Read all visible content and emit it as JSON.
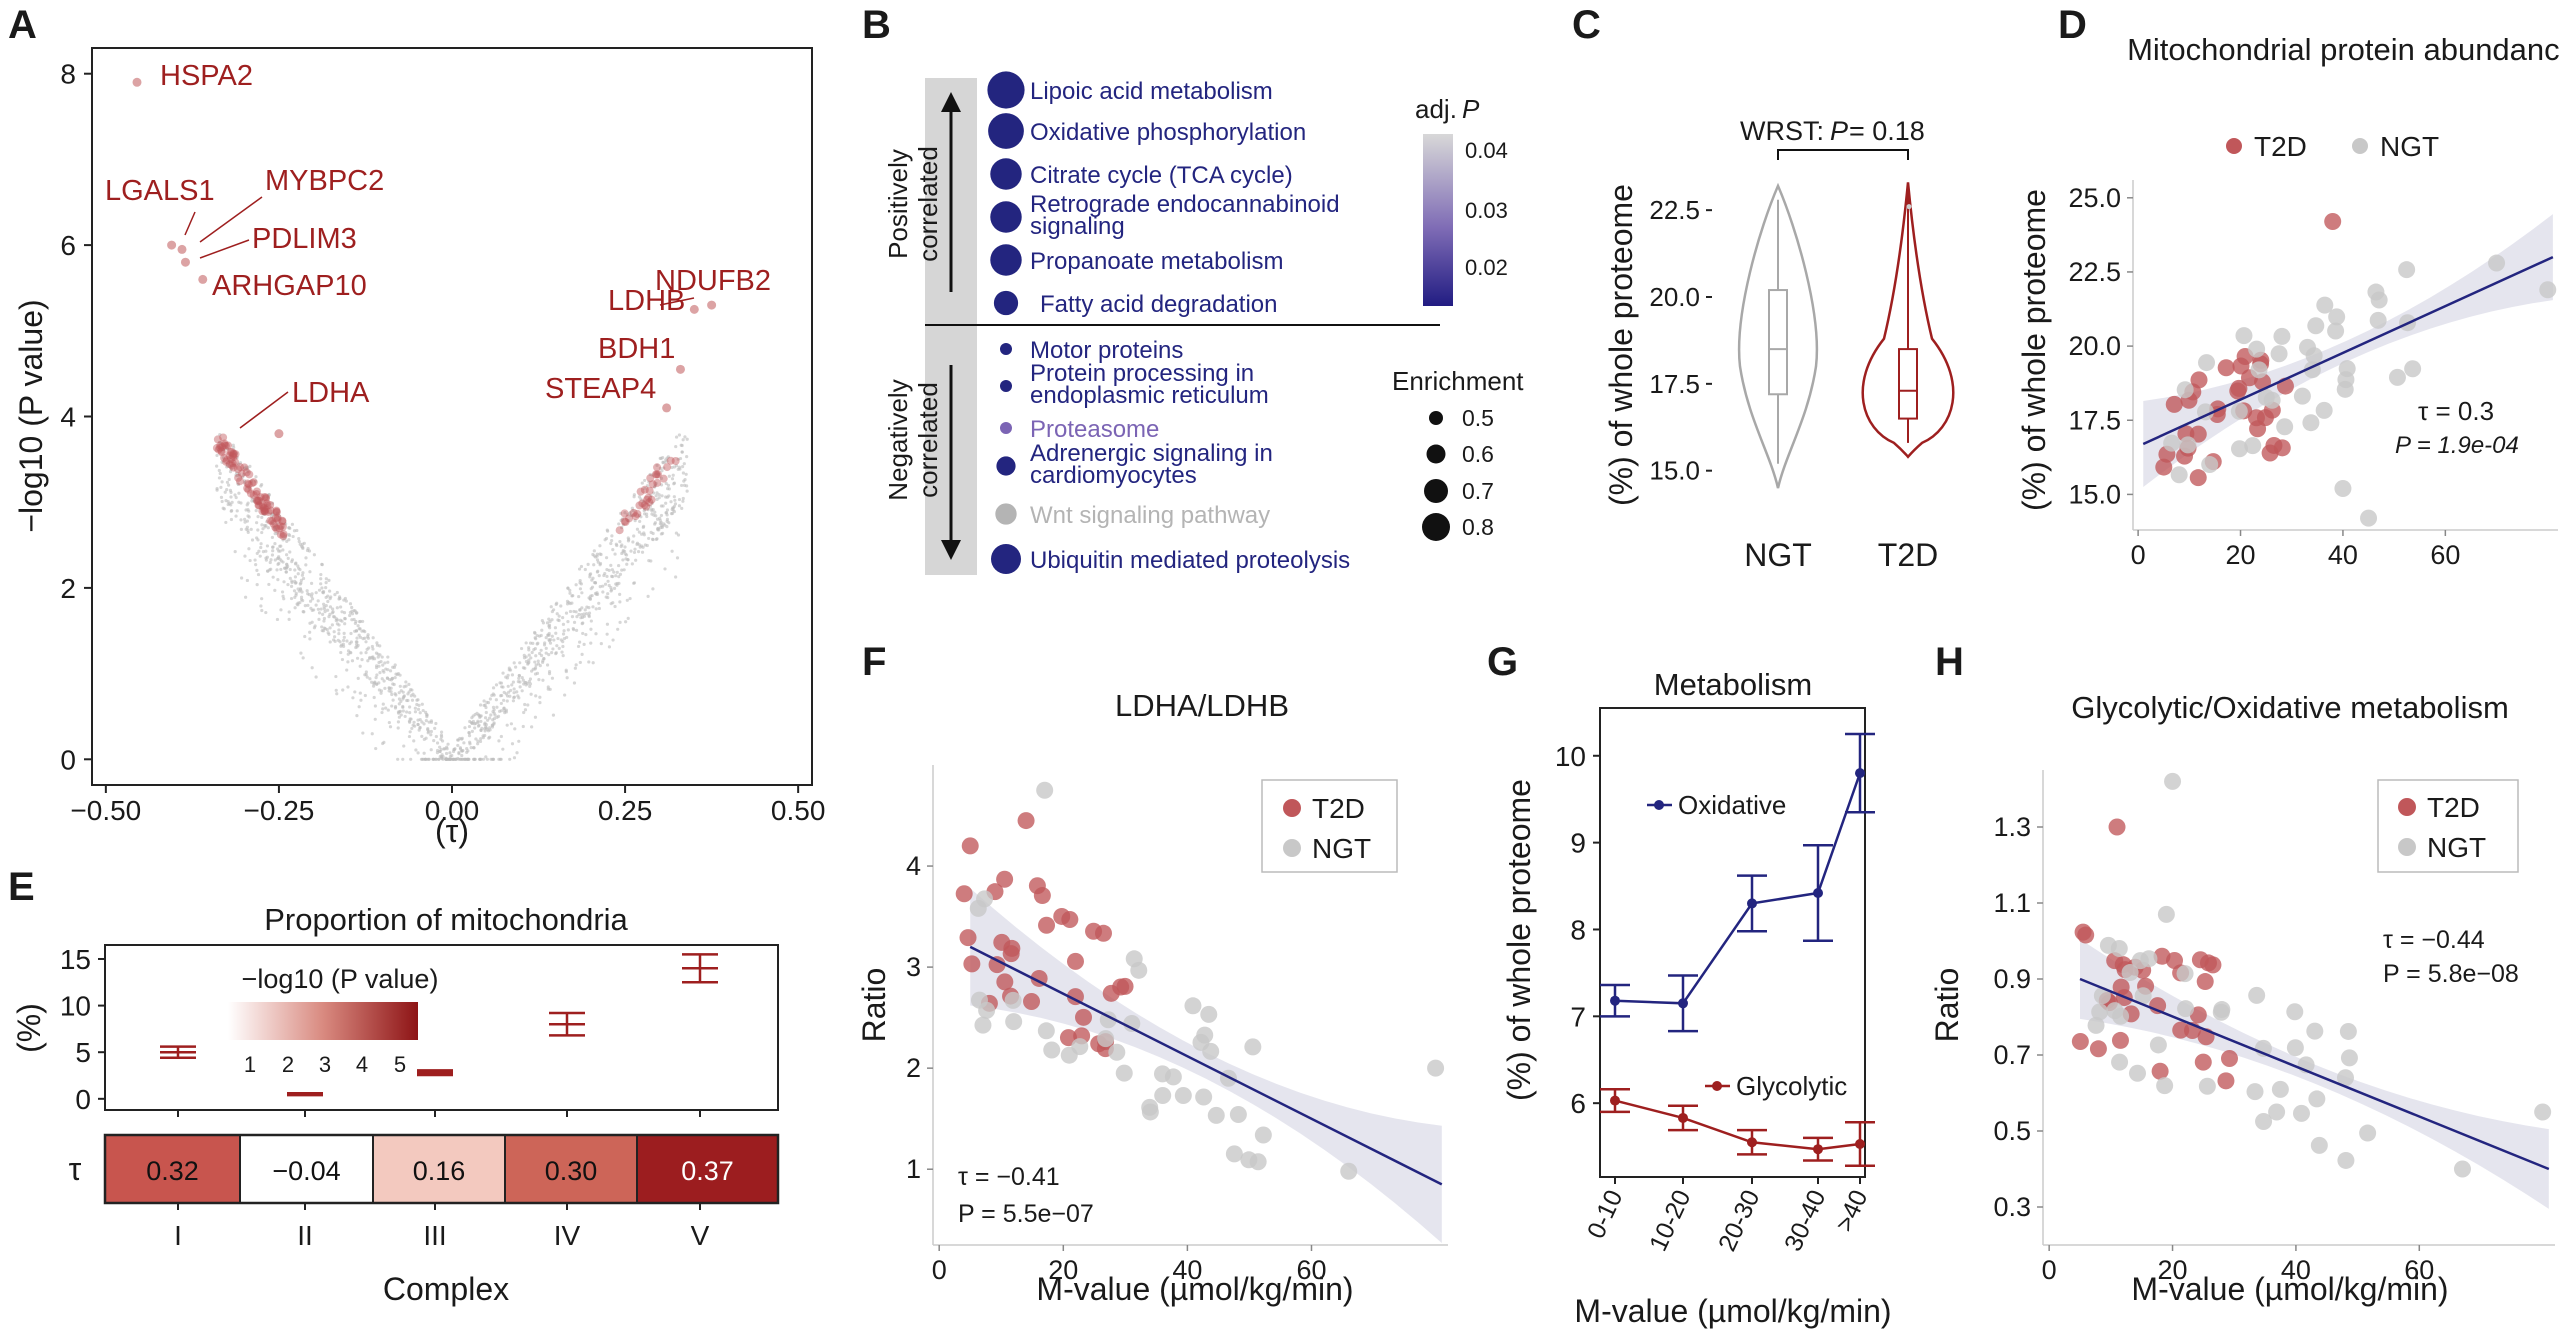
{
  "colors": {
    "red": "#9e1f1f",
    "pinkRed": "#c0575a",
    "navy": "#23257f",
    "grey": "#c8c8c8",
    "darkGrey": "#8a8a8a",
    "purple": "#7b64b4",
    "lightGrey": "#b4b4b4"
  },
  "chart_data": [
    {
      "panel": "A",
      "type": "scatter",
      "title": "",
      "xlabel": "(τ)",
      "ylabel": "−log10 (P value)",
      "xlim": [
        -0.52,
        0.52
      ],
      "ylim": [
        -0.3,
        8.3
      ],
      "xticks": [
        -0.5,
        -0.25,
        0.0,
        0.25,
        0.5
      ],
      "xtick_labels": [
        "−0.50",
        "−0.25",
        "0.00",
        "0.25",
        "0.50"
      ],
      "yticks": [
        0,
        2,
        4,
        6,
        8
      ],
      "labeled_points": [
        {
          "label": "HSPA2",
          "x": -0.455,
          "y": 7.9
        },
        {
          "label": "LGALS1",
          "x": -0.405,
          "y": 6.0
        },
        {
          "label": "MYBPC2",
          "x": -0.39,
          "y": 5.95
        },
        {
          "label": "PDLIM3",
          "x": -0.385,
          "y": 5.8
        },
        {
          "label": "ARHGAP10",
          "x": -0.36,
          "y": 5.6
        },
        {
          "label": "LDHA",
          "x": -0.25,
          "y": 3.8
        },
        {
          "label": "LDHB",
          "x": 0.35,
          "y": 5.25
        },
        {
          "label": "NDUFB2",
          "x": 0.375,
          "y": 5.3
        },
        {
          "label": "BDH1",
          "x": 0.33,
          "y": 4.55
        },
        {
          "label": "STEAP4",
          "x": 0.31,
          "y": 4.1
        }
      ]
    },
    {
      "panel": "B",
      "type": "dot",
      "axis_top": "Positively correlated",
      "axis_bottom": "Negatively correlated",
      "legend_color_title": "adj.P",
      "legend_color_ticks": [
        "0.04",
        "0.03",
        "0.02"
      ],
      "legend_size_title": "Enrichment",
      "legend_size_values": [
        "0.5",
        "0.6",
        "0.7",
        "0.8"
      ],
      "terms": [
        {
          "name": "Lipoic acid metabolism",
          "enrichment": 0.8,
          "adjP": 0.015
        },
        {
          "name": "Oxidative phosphorylation",
          "enrichment": 0.78,
          "adjP": 0.015
        },
        {
          "name": "Citrate cycle (TCA cycle)",
          "enrichment": 0.72,
          "adjP": 0.015
        },
        {
          "name": "Retrograde endocannabinoid signaling",
          "enrichment": 0.72,
          "adjP": 0.016
        },
        {
          "name": "Propanoate metabolism",
          "enrichment": 0.72,
          "adjP": 0.015
        },
        {
          "name": "Fatty acid degradation",
          "enrichment": 0.62,
          "adjP": 0.015
        },
        {
          "name": "Motor proteins",
          "enrichment": 0.45,
          "adjP": 0.015
        },
        {
          "name": "Protein processing in endoplasmic reticulum",
          "enrichment": 0.45,
          "adjP": 0.016
        },
        {
          "name": "Proteasome",
          "enrichment": 0.45,
          "adjP": 0.03
        },
        {
          "name": "Adrenergic signaling in cardiomyocytes",
          "enrichment": 0.55,
          "adjP": 0.017
        },
        {
          "name": "Wnt signaling pathway",
          "enrichment": 0.58,
          "adjP": 0.045
        },
        {
          "name": "Ubiquitin mediated proteolysis",
          "enrichment": 0.7,
          "adjP": 0.015
        }
      ]
    },
    {
      "panel": "C",
      "type": "violin",
      "ylabel": "(%) of whole proteome",
      "yticks": [
        "15.0",
        "17.5",
        "20.0",
        "22.5"
      ],
      "categories": [
        "NGT",
        "T2D"
      ],
      "test_prefix": "WRST: ",
      "test_p": "P",
      "test_value": " = 0.18",
      "groups": [
        {
          "name": "NGT",
          "median": 18.5,
          "q1": 17.2,
          "q3": 20.2,
          "min": 15.2,
          "max": 22.8
        },
        {
          "name": "T2D",
          "median": 17.3,
          "q1": 16.5,
          "q3": 18.5,
          "min": 15.8,
          "max": 23.2
        }
      ]
    },
    {
      "panel": "D",
      "type": "scatter",
      "title": "Mitochondrial protein abundance",
      "ylabel": "(%) of whole proteome",
      "xlabel": "",
      "xticks": [
        "0",
        "20",
        "40",
        "60"
      ],
      "yticks": [
        "15.0",
        "17.5",
        "20.0",
        "22.5",
        "25.0"
      ],
      "xlim": [
        -1,
        82
      ],
      "ylim": [
        13.8,
        25.6
      ],
      "legend": [
        "T2D",
        "NGT"
      ],
      "tau": "τ = 0.3",
      "p": "P = 1.9e-04",
      "fit": {
        "x0": 1,
        "y0": 16.7,
        "x1": 81,
        "y1": 23.0
      }
    },
    {
      "panel": "E",
      "type": "errorbar+heatmap",
      "title": "Proportion of mitochondria",
      "ylabel": "(%)",
      "xlabel": "Complex",
      "categories": [
        "I",
        "II",
        "III",
        "IV",
        "V"
      ],
      "values": [
        5.0,
        0.5,
        2.8,
        8.0,
        14.0
      ],
      "errors": [
        0.6,
        0.1,
        0.25,
        1.2,
        1.5
      ],
      "yticks": [
        "0",
        "5",
        "10",
        "15"
      ],
      "tau_label": "τ",
      "tau_values": [
        "0.32",
        "−0.04",
        "0.16",
        "0.30",
        "0.37"
      ],
      "heat_colors": [
        "#c8554e",
        "#ffffff",
        "#f3c9bf",
        "#cd6558",
        "#9c1d1f"
      ],
      "legend_title": "−log10 (P value)",
      "legend_ticks": [
        "1",
        "2",
        "3",
        "4",
        "5"
      ]
    },
    {
      "panel": "F",
      "type": "scatter",
      "title": "LDHA/LDHB",
      "xlabel": "M-value (µmol/kg/min)",
      "ylabel": "Ratio",
      "xticks": [
        "0",
        "20",
        "40",
        "60"
      ],
      "yticks": [
        "1",
        "2",
        "3",
        "4"
      ],
      "xlim": [
        -1,
        82
      ],
      "ylim": [
        0.25,
        5.0
      ],
      "legend": [
        "T2D",
        "NGT"
      ],
      "tau": "τ = −0.41",
      "p": "P = 5.5e−07",
      "fit": {
        "x0": 5,
        "y0": 3.2,
        "x1": 81,
        "y1": 0.85
      }
    },
    {
      "panel": "G",
      "type": "line",
      "title": "Metabolism",
      "xlabel": "M-value (µmol/kg/min)",
      "ylabel": "(%) of whole proteome",
      "categories": [
        "0-10",
        "10-20",
        "20-30",
        "30-40",
        ">40"
      ],
      "yticks": [
        "6",
        "7",
        "8",
        "9",
        "10"
      ],
      "ylim": [
        5.15,
        10.55
      ],
      "series": [
        {
          "name": "Oxidative",
          "values": [
            7.18,
            7.15,
            8.3,
            8.42,
            9.8
          ],
          "errors": [
            0.18,
            0.32,
            0.32,
            0.55,
            0.45
          ]
        },
        {
          "name": "Glycolytic",
          "values": [
            6.03,
            5.83,
            5.55,
            5.47,
            5.53
          ],
          "errors": [
            0.13,
            0.14,
            0.14,
            0.13,
            0.25
          ]
        }
      ]
    },
    {
      "panel": "H",
      "type": "scatter",
      "title": "Glycolytic/Oxidative metabolism",
      "xlabel": "M-value (µmol/kg/min)",
      "ylabel": "Ratio",
      "xticks": [
        "0",
        "20",
        "40",
        "60"
      ],
      "yticks": [
        "0.3",
        "0.5",
        "0.7",
        "0.9",
        "1.1",
        "1.3"
      ],
      "xlim": [
        -1,
        82
      ],
      "ylim": [
        0.2,
        1.45
      ],
      "legend": [
        "T2D",
        "NGT"
      ],
      "tau": "τ = −0.44",
      "p": "P = 5.8e−08",
      "fit": {
        "x0": 5,
        "y0": 0.9,
        "x1": 81,
        "y1": 0.4
      }
    }
  ]
}
